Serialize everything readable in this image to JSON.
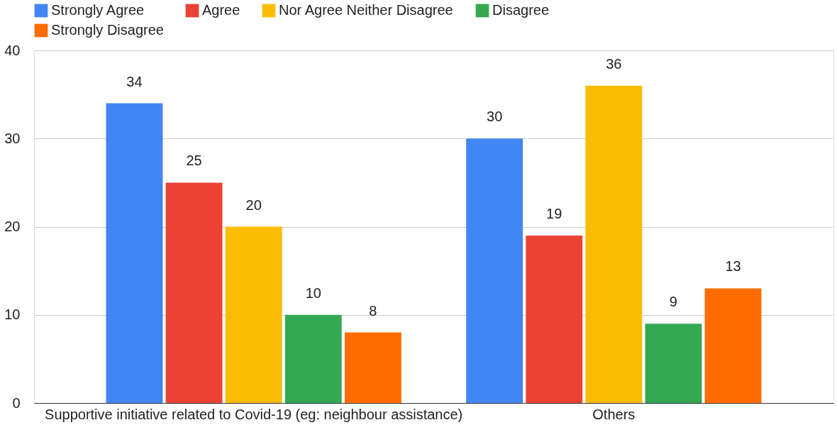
{
  "chart_data": {
    "type": "bar",
    "categories": [
      "Supportive initiative related to Covid-19 (eg: neighbour assistance)",
      "Others"
    ],
    "series": [
      {
        "name": "Strongly Agree",
        "color": "#4285f4",
        "values": [
          34,
          30
        ]
      },
      {
        "name": "Agree",
        "color": "#ea4335",
        "values": [
          25,
          19
        ]
      },
      {
        "name": "Nor Agree Neither Disagree",
        "color": "#fbbc04",
        "values": [
          20,
          36
        ]
      },
      {
        "name": "Disagree",
        "color": "#34a853",
        "values": [
          10,
          9
        ]
      },
      {
        "name": "Strongly Disagree",
        "color": "#ff6d01",
        "values": [
          8,
          13
        ]
      }
    ],
    "ylim": [
      0,
      40
    ],
    "yticks": [
      0,
      10,
      20,
      30,
      40
    ],
    "grid": "y",
    "legend": "top",
    "data_labels": true
  }
}
